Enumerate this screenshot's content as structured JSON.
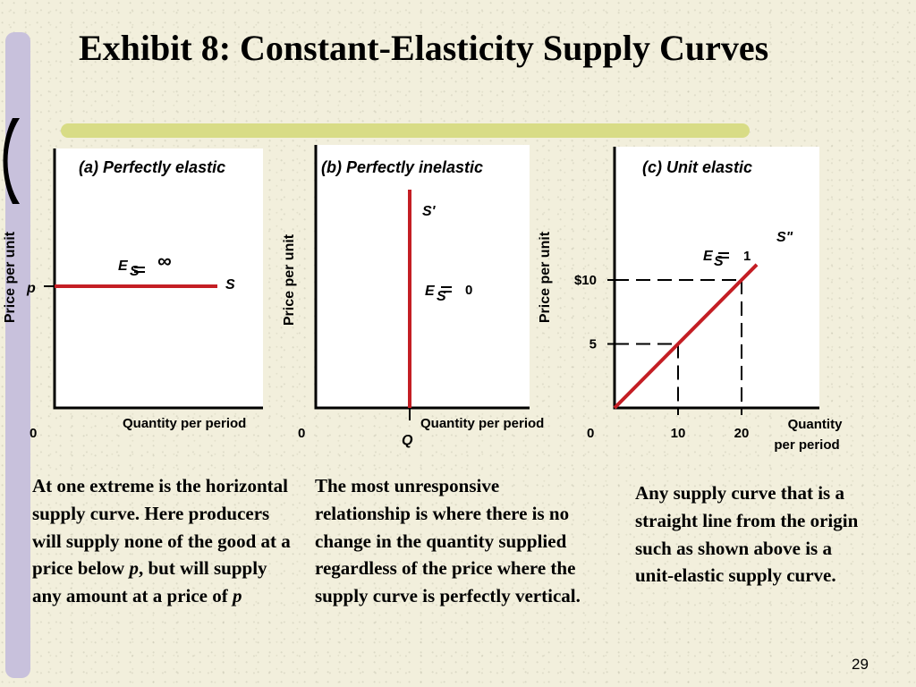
{
  "slide": {
    "title": "Exhibit 8: Constant-Elasticity Supply Curves",
    "page_number": "29",
    "accent_colors": {
      "side_bar": "#c8c1dc",
      "title_rule": "#d8dc86",
      "curve": "#c41e24"
    }
  },
  "captions": {
    "a_text": "At one extreme is the horizontal supply curve. Here producers will supply none of the good at a price below ",
    "a_var1": "p",
    "a_mid": ", but will supply any amount at a price of ",
    "a_var2": "p",
    "b": "The most unresponsive relationship is where there is no change in the quantity supplied regardless of the price where the supply curve is perfectly vertical.",
    "c": "Any supply curve that is a straight line from the origin such as shown above is a unit-elastic supply curve."
  },
  "chart_data": [
    {
      "type": "line",
      "title": "(a) Perfectly elastic",
      "ylabel": "Price per unit",
      "xlabel": "Quantity per period",
      "origin_label": "0",
      "price_label": "p",
      "curve_label": "S",
      "elasticity_symbol": "E",
      "elasticity_subscript": "S",
      "elasticity_value": "∞",
      "series": [
        {
          "name": "S",
          "shape": "horizontal"
        }
      ],
      "grid": false
    },
    {
      "type": "line",
      "title": "(b) Perfectly inelastic",
      "ylabel": "Price per unit",
      "xlabel": "Quantity per period",
      "origin_label": "0",
      "quantity_label": "Q",
      "curve_label": "S'",
      "elasticity_symbol": "E",
      "elasticity_subscript": "S",
      "elasticity_value": "0",
      "series": [
        {
          "name": "S'",
          "shape": "vertical"
        }
      ],
      "grid": false
    },
    {
      "type": "line",
      "title": "(c) Unit elastic",
      "ylabel": "Price per unit",
      "xlabel": [
        "Quantity",
        "per period"
      ],
      "origin_label": "0",
      "curve_label": "S\"",
      "elasticity_symbol": "E",
      "elasticity_subscript": "S",
      "elasticity_value": "1",
      "x_ticks": [
        "10",
        "20"
      ],
      "y_ticks": [
        "5",
        "$10"
      ],
      "x_values": [
        10,
        20
      ],
      "y_values": [
        5,
        10
      ],
      "xlim": [
        0,
        28
      ],
      "ylim": [
        0,
        15
      ],
      "series": [
        {
          "name": "S\"",
          "x": [
            0,
            10,
            20
          ],
          "y": [
            0,
            5,
            10
          ]
        }
      ],
      "guides": [
        {
          "x": 10,
          "y": 5
        },
        {
          "x": 20,
          "y": 10
        }
      ],
      "grid": false
    }
  ]
}
